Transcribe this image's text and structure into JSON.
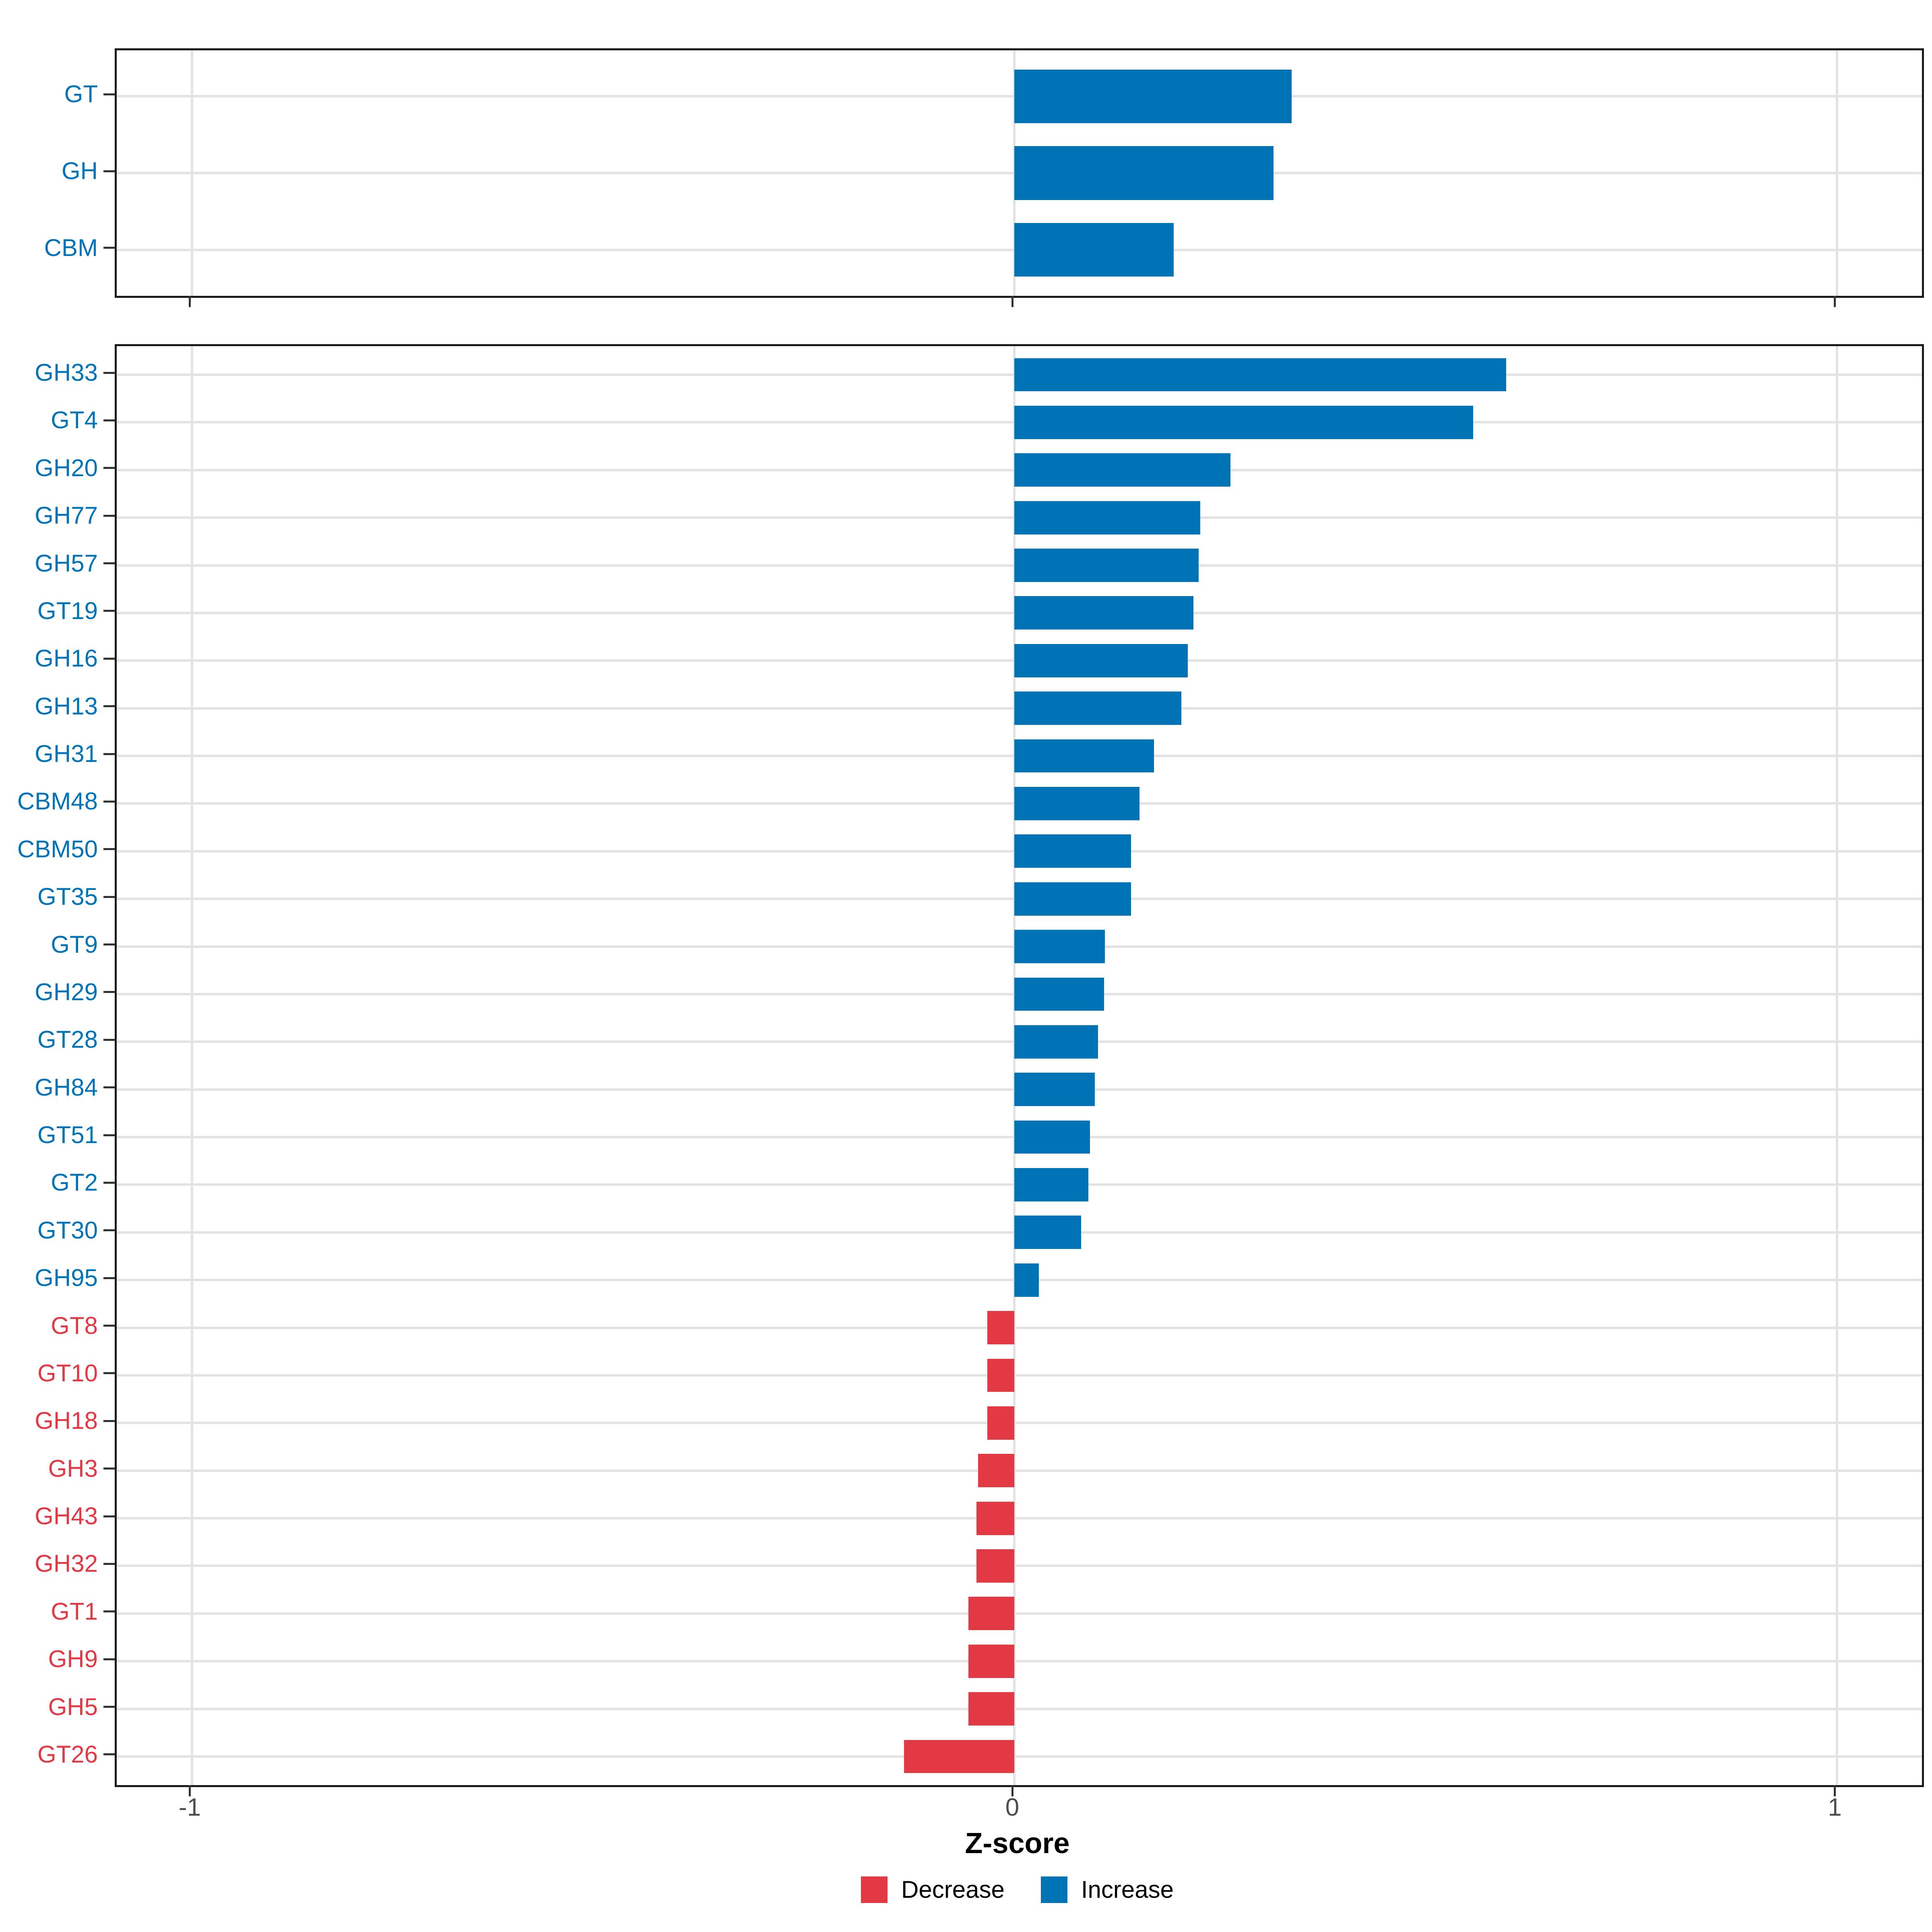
{
  "chart_data": [
    {
      "type": "bar",
      "orientation": "horizontal",
      "panel": "cazyme-classes-summary",
      "categories": [
        "GT",
        "GH",
        "CBM"
      ],
      "values": [
        0.337,
        0.315,
        0.194
      ],
      "directions": [
        "Increase",
        "Increase",
        "Increase"
      ],
      "xlim": [
        -1.09,
        1.1
      ],
      "x_ticks": [
        -1,
        0,
        1
      ],
      "grid": true,
      "bar_width_fraction": 0.7,
      "legend_position": "bottom"
    },
    {
      "type": "bar",
      "orientation": "horizontal",
      "panel": "cazyme-families",
      "categories": [
        "GH33",
        "GT4",
        "GH20",
        "GH77",
        "GH57",
        "GT19",
        "GH16",
        "GH13",
        "GH31",
        "CBM48",
        "CBM50",
        "GT35",
        "GT9",
        "GH29",
        "GT28",
        "GH84",
        "GT51",
        "GT2",
        "GT30",
        "GH95",
        "GT8",
        "GT10",
        "GH18",
        "GH3",
        "GH43",
        "GH32",
        "GT1",
        "GH9",
        "GH5",
        "GT26"
      ],
      "values": [
        0.598,
        0.558,
        0.263,
        0.226,
        0.224,
        0.218,
        0.211,
        0.203,
        0.17,
        0.152,
        0.142,
        0.142,
        0.11,
        0.109,
        0.102,
        0.098,
        0.092,
        0.09,
        0.081,
        0.03,
        -0.033,
        -0.033,
        -0.033,
        -0.044,
        -0.046,
        -0.046,
        -0.056,
        -0.056,
        -0.056,
        -0.134
      ],
      "directions": [
        "Increase",
        "Increase",
        "Increase",
        "Increase",
        "Increase",
        "Increase",
        "Increase",
        "Increase",
        "Increase",
        "Increase",
        "Increase",
        "Increase",
        "Increase",
        "Increase",
        "Increase",
        "Increase",
        "Increase",
        "Increase",
        "Increase",
        "Increase",
        "Decrease",
        "Decrease",
        "Decrease",
        "Decrease",
        "Decrease",
        "Decrease",
        "Decrease",
        "Decrease",
        "Decrease",
        "Decrease"
      ],
      "xlim": [
        -1.09,
        1.1
      ],
      "x_ticks": [
        -1,
        0,
        1
      ],
      "grid": true,
      "bar_width_fraction": 0.7,
      "legend_position": "bottom"
    }
  ],
  "xlabel": "Z-score",
  "x_tick_labels": [
    "-1",
    "0",
    "1"
  ],
  "legend": {
    "items": [
      {
        "label": "Decrease",
        "direction": "Decrease"
      },
      {
        "label": "Increase",
        "direction": "Increase"
      }
    ]
  },
  "colors": {
    "Increase": "#0073b6",
    "Decrease": "#e33945",
    "grid": "#e3e3e3",
    "axis_text": "#4d4d4d",
    "panel_border": "#1a1a1a",
    "tick": "#333333"
  }
}
